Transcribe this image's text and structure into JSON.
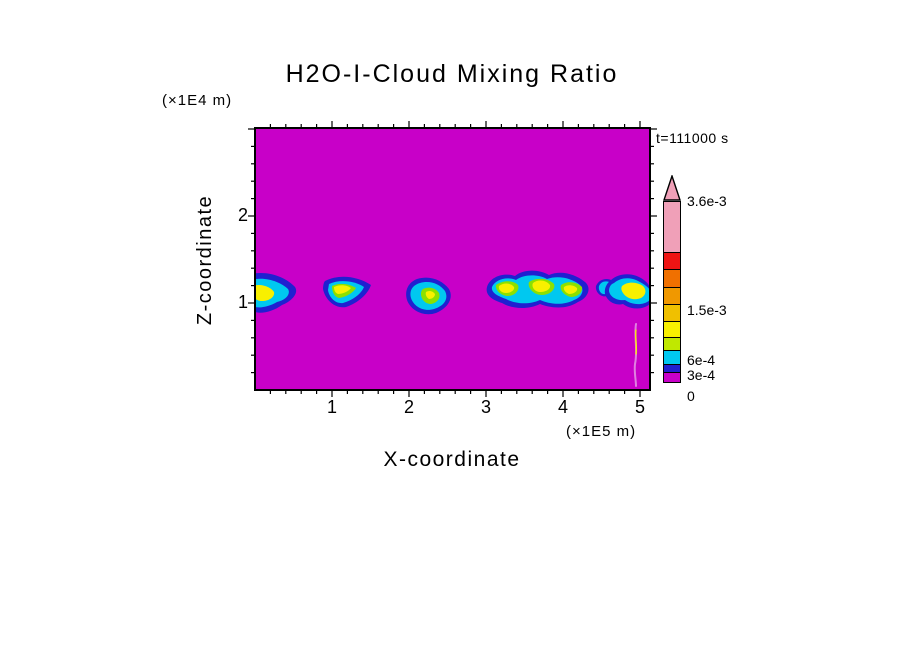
{
  "figure": {
    "title": "H2O-I-Cloud Mixing Ratio",
    "time_label": "t=111000 s",
    "x_axis": {
      "label": "X-coordinate",
      "unit": "(×1E5 m)"
    },
    "y_axis": {
      "label": "Z-coordinate",
      "unit": "(×1E4 m)"
    }
  },
  "palette": {
    "background": "#FFFFFF",
    "magenta": "#C800C8",
    "blue": "#2020D0",
    "cyan": "#00C8F0",
    "green": "#8CE000",
    "yellow": "#F8F000",
    "streak_pink": "#E080E0"
  },
  "colorbar": {
    "arrow_color": "#F0A0B8",
    "bottom_label": "0",
    "segments": [
      {
        "color": "#F0A0B8",
        "height": 52,
        "label": "3.6e-3"
      },
      {
        "color": "#EE1414",
        "height": 19
      },
      {
        "color": "#F07000",
        "height": 19
      },
      {
        "color": "#F09800",
        "height": 19
      },
      {
        "color": "#F0C000",
        "height": 18,
        "label": "1.5e-3"
      },
      {
        "color": "#F8F000",
        "height": 17
      },
      {
        "color": "#C0E800",
        "height": 15
      },
      {
        "color": "#00C8F0",
        "height": 15,
        "label": "6e-4"
      },
      {
        "color": "#2020D0",
        "height": 10,
        "label": "3e-4"
      },
      {
        "color": "#C800C8",
        "height": 11
      }
    ]
  },
  "chart_data": {
    "type": "filled_contour",
    "title": "H2O-I-Cloud Mixing Ratio",
    "time": "t=111000 s",
    "xlabel": "X-coordinate",
    "x_unit": "(×1E5 m)",
    "ylabel": "Z-coordinate",
    "y_unit": "(×1E4 m)",
    "x_range": [
      0,
      5.13
    ],
    "y_range": [
      0,
      3.01
    ],
    "x_major_ticks": [
      1,
      2,
      3,
      4,
      5
    ],
    "y_major_ticks": [
      1,
      2
    ],
    "minor_tick_step": 0.2,
    "background_value": 0,
    "labeled_levels": [
      "0",
      "3e-4",
      "6e-4",
      "1.5e-3",
      "3.6e-3"
    ],
    "estimated_contour_levels": [
      0,
      0.00015,
      0.0003,
      0.0006,
      0.0009,
      0.0012,
      0.0015,
      0.0021,
      0.0027,
      0.0036
    ],
    "features": {
      "cloud_band_z_range": [
        0.85,
        1.4
      ],
      "clouds": [
        {
          "x_range": [
            0.0,
            0.58
          ],
          "z_range": [
            0.86,
            1.36
          ],
          "core": "yellow, ~9e-4"
        },
        {
          "x_range": [
            0.88,
            1.52
          ],
          "z_range": [
            0.93,
            1.33
          ],
          "core": "yellow-green, ~6e-4 to 9e-4"
        },
        {
          "x_range": [
            1.95,
            2.56
          ],
          "z_range": [
            0.88,
            1.3
          ],
          "core": "cyan-green, ~3e-4 to 6e-4"
        },
        {
          "x_range": [
            3.01,
            4.38
          ],
          "z_range": [
            0.9,
            1.4
          ],
          "core": "multiple yellow cores, ~9e-4"
        },
        {
          "x_range": [
            4.42,
            5.13
          ],
          "z_range": [
            0.9,
            1.35
          ],
          "core": "yellow, ~9e-4"
        }
      ],
      "fall_streak": {
        "x": 4.95,
        "z_range": [
          0.05,
          0.8
        ]
      }
    }
  }
}
